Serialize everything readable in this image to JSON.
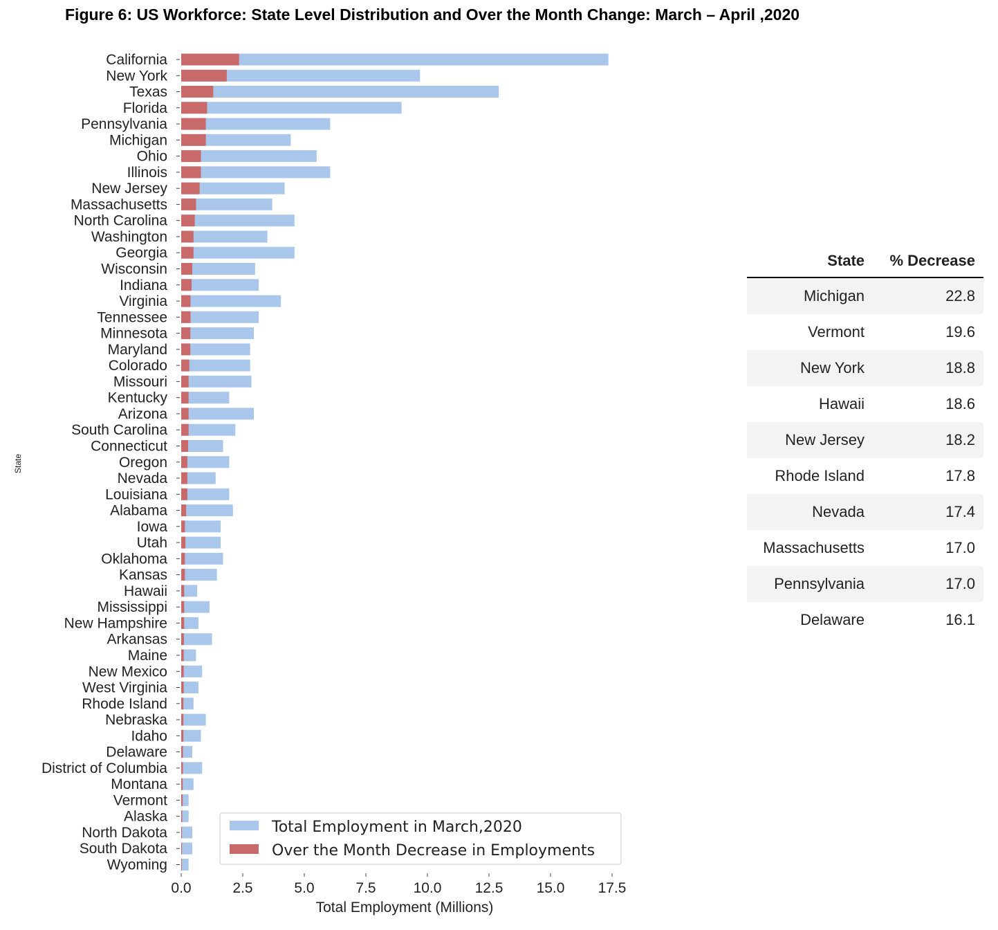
{
  "figure_title": "Figure 6: US Workforce: State Level Distribution and Over the Month Change: March – April ,2020",
  "chart_data": {
    "type": "bar",
    "orientation": "horizontal",
    "stacked_overlay": true,
    "xlabel": "Total Employment (Millions)",
    "ylabel": "State",
    "xlim": [
      0,
      18.0
    ],
    "xticks": [
      "0.0",
      "2.5",
      "5.0",
      "7.5",
      "10.0",
      "12.5",
      "15.0",
      "17.5"
    ],
    "tick_values": [
      0,
      2.5,
      5,
      7.5,
      10,
      12.5,
      15,
      17.5
    ],
    "legend_position": "lower-right",
    "colors": {
      "total": "#a9c6eb",
      "decrease": "#c86a6a"
    },
    "categories": [
      "California",
      "New York",
      "Texas",
      "Florida",
      "Pennsylvania",
      "Michigan",
      "Ohio",
      "Illinois",
      "New Jersey",
      "Massachusetts",
      "North Carolina",
      "Washington",
      "Georgia",
      "Wisconsin",
      "Indiana",
      "Virginia",
      "Tennessee",
      "Minnesota",
      "Maryland",
      "Colorado",
      "Missouri",
      "Kentucky",
      "Arizona",
      "South Carolina",
      "Connecticut",
      "Oregon",
      "Nevada",
      "Louisiana",
      "Alabama",
      "Iowa",
      "Utah",
      "Oklahoma",
      "Kansas",
      "Hawaii",
      "Mississippi",
      "New Hampshire",
      "Arkansas",
      "Maine",
      "New Mexico",
      "West Virginia",
      "Rhode Island",
      "Nebraska",
      "Idaho",
      "Delaware",
      "District of Columbia",
      "Montana",
      "Vermont",
      "Alaska",
      "North Dakota",
      "South Dakota",
      "Wyoming"
    ],
    "series": [
      {
        "name": "Total Employment in March,2020",
        "values": [
          17.35,
          9.7,
          12.9,
          8.95,
          6.05,
          4.45,
          5.5,
          6.05,
          4.2,
          3.7,
          4.6,
          3.5,
          4.6,
          3.0,
          3.15,
          4.05,
          3.15,
          2.95,
          2.8,
          2.8,
          2.85,
          1.95,
          2.95,
          2.2,
          1.7,
          1.95,
          1.4,
          1.95,
          2.1,
          1.6,
          1.6,
          1.7,
          1.45,
          0.65,
          1.15,
          0.7,
          1.25,
          0.6,
          0.85,
          0.7,
          0.5,
          1.0,
          0.8,
          0.45,
          0.85,
          0.5,
          0.3,
          0.3,
          0.45,
          0.45,
          0.3
        ]
      },
      {
        "name": "Over the Month Decrease in Employments",
        "values": [
          2.35,
          1.85,
          1.3,
          1.05,
          1.0,
          1.0,
          0.8,
          0.8,
          0.75,
          0.6,
          0.55,
          0.5,
          0.5,
          0.45,
          0.42,
          0.38,
          0.38,
          0.37,
          0.37,
          0.33,
          0.3,
          0.3,
          0.3,
          0.3,
          0.28,
          0.25,
          0.25,
          0.25,
          0.2,
          0.15,
          0.17,
          0.15,
          0.15,
          0.12,
          0.12,
          0.12,
          0.11,
          0.1,
          0.1,
          0.1,
          0.09,
          0.09,
          0.09,
          0.07,
          0.07,
          0.06,
          0.06,
          0.04,
          0.03,
          0.03,
          0.02
        ]
      }
    ]
  },
  "table": {
    "headers": [
      "State",
      "% Decrease"
    ],
    "rows": [
      [
        "Michigan",
        "22.8"
      ],
      [
        "Vermont",
        "19.6"
      ],
      [
        "New York",
        "18.8"
      ],
      [
        "Hawaii",
        "18.6"
      ],
      [
        "New Jersey",
        "18.2"
      ],
      [
        "Rhode Island",
        "17.8"
      ],
      [
        "Nevada",
        "17.4"
      ],
      [
        "Massachusetts",
        "17.0"
      ],
      [
        "Pennsylvania",
        "17.0"
      ],
      [
        "Delaware",
        "16.1"
      ]
    ]
  }
}
